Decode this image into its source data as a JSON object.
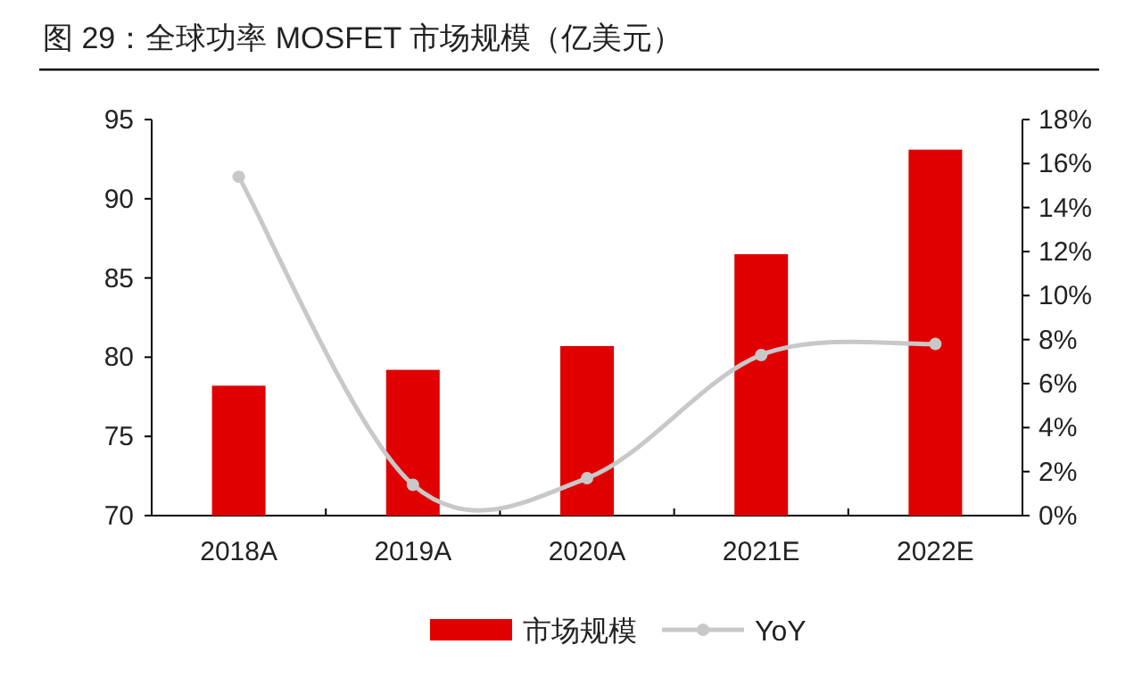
{
  "chart_data": {
    "type": "bar",
    "title": "图 29：全球功率 MOSFET 市场规模（亿美元）",
    "categories": [
      "2018A",
      "2019A",
      "2020A",
      "2021E",
      "2022E"
    ],
    "series": [
      {
        "name": "市场规模",
        "color": "#e00000",
        "values": [
          78.2,
          79.2,
          80.7,
          86.5,
          93.1
        ]
      },
      {
        "name": "YoY",
        "type": "line",
        "axis": "y2",
        "color": "#c8c8c8",
        "marker": "circle",
        "values": [
          15.4,
          1.4,
          1.7,
          7.3,
          7.8
        ]
      }
    ],
    "ylim": [
      70,
      95
    ],
    "yticks": [
      70,
      75,
      80,
      85,
      90,
      95
    ],
    "y2lim": [
      0,
      18
    ],
    "y2ticks": [
      {
        "value": 0,
        "label": "0%"
      },
      {
        "value": 2,
        "label": "2%"
      },
      {
        "value": 4,
        "label": "4%"
      },
      {
        "value": 6,
        "label": "6%"
      },
      {
        "value": 8,
        "label": "8%"
      },
      {
        "value": 10,
        "label": "10%"
      },
      {
        "value": 12,
        "label": "12%"
      },
      {
        "value": 14,
        "label": "14%"
      },
      {
        "value": 16,
        "label": "16%"
      },
      {
        "value": 18,
        "label": "18%"
      }
    ],
    "legend": "bottom",
    "grid": false
  }
}
